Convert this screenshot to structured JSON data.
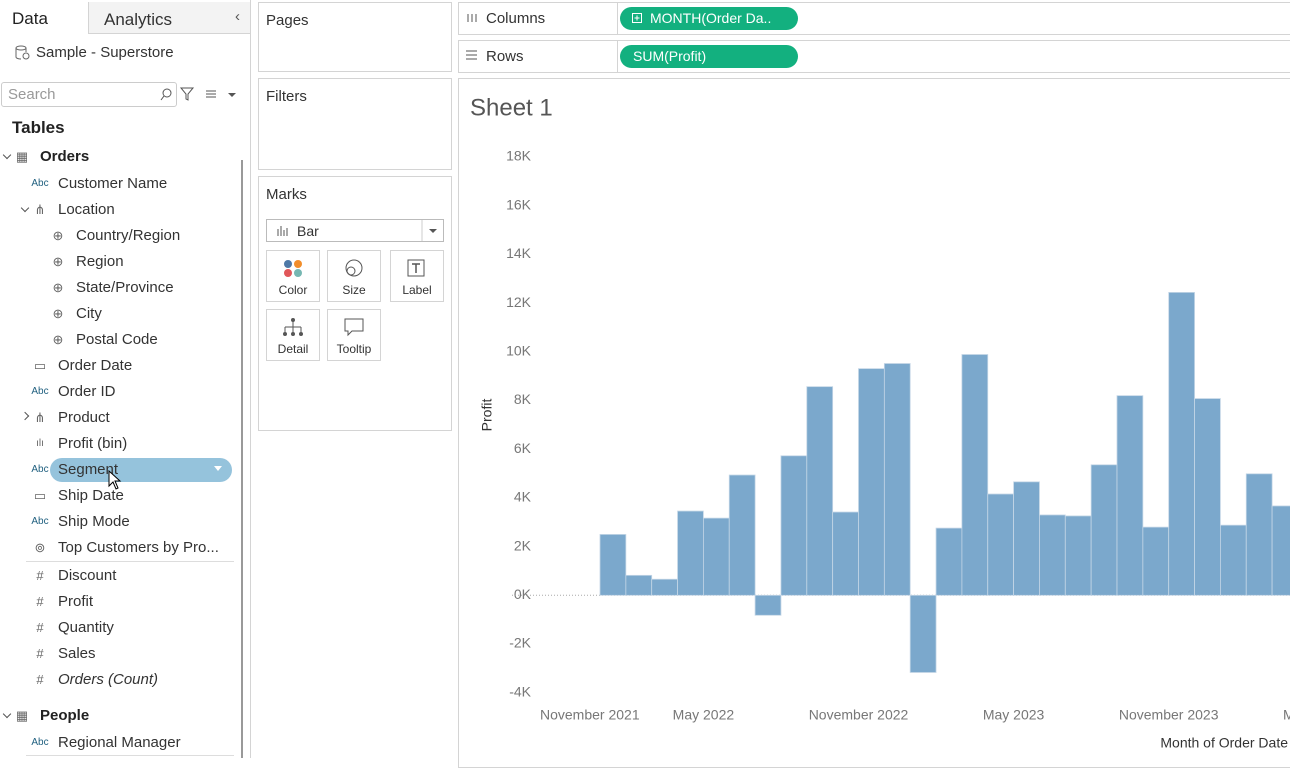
{
  "data_pane": {
    "tabs": [
      "Data",
      "Analytics"
    ],
    "datasource": "Sample - Superstore",
    "search_placeholder": "Search",
    "section": "Tables",
    "fields": [
      {
        "label": "Orders",
        "icon": "▦",
        "depth": 0,
        "expander": "open"
      },
      {
        "label": "Customer Name",
        "icon": "Abc",
        "depth": 1
      },
      {
        "label": "Location",
        "icon": "⋔",
        "depth": 1,
        "expander": "open"
      },
      {
        "label": "Country/Region",
        "icon": "⊕",
        "depth": 2
      },
      {
        "label": "Region",
        "icon": "⊕",
        "depth": 2
      },
      {
        "label": "State/Province",
        "icon": "⊕",
        "depth": 2
      },
      {
        "label": "City",
        "icon": "⊕",
        "depth": 2
      },
      {
        "label": "Postal Code",
        "icon": "⊕",
        "depth": 2
      },
      {
        "label": "Order Date",
        "icon": "▭",
        "depth": 1
      },
      {
        "label": "Order ID",
        "icon": "Abc",
        "depth": 1
      },
      {
        "label": "Product",
        "icon": "⋔",
        "depth": 1,
        "expander": "closed"
      },
      {
        "label": "Profit (bin)",
        "icon": "ılı",
        "depth": 1
      },
      {
        "label": "Segment",
        "icon": "Abc",
        "depth": 1,
        "selected": true
      },
      {
        "label": "Ship Date",
        "icon": "▭",
        "depth": 1
      },
      {
        "label": "Ship Mode",
        "icon": "Abc",
        "depth": 1
      },
      {
        "label": "Top Customers by Pro...",
        "icon": "⊚",
        "depth": 1
      },
      {
        "label": "Discount",
        "icon": "#",
        "depth": 1
      },
      {
        "label": "Profit",
        "icon": "#",
        "depth": 1
      },
      {
        "label": "Quantity",
        "icon": "#",
        "depth": 1
      },
      {
        "label": "Sales",
        "icon": "#",
        "depth": 1
      },
      {
        "label": "Orders (Count)",
        "icon": "#",
        "depth": 1,
        "italic": true
      },
      {
        "label": "People",
        "icon": "▦",
        "depth": 0,
        "expander": "open"
      },
      {
        "label": "Regional Manager",
        "icon": "Abc",
        "depth": 1
      }
    ]
  },
  "shelves": {
    "pages": "Pages",
    "filters": "Filters",
    "marks": {
      "title": "Marks",
      "mark_type": "Bar",
      "buttons": [
        "Color",
        "Size",
        "Label",
        "Detail",
        "Tooltip"
      ]
    },
    "columns": {
      "label": "Columns",
      "pill": "MONTH(Order Da.."
    },
    "rows": {
      "label": "Rows",
      "pill": "SUM(Profit)"
    }
  },
  "chart_data": {
    "type": "bar",
    "title": "Sheet 1",
    "y_label": "Profit",
    "x_label": "Month of Order Date",
    "color": "#7ba8cc",
    "x": [
      "2022-01",
      "2022-02",
      "2022-03",
      "2022-04",
      "2022-05",
      "2022-06",
      "2022-07",
      "2022-08",
      "2022-09",
      "2022-10",
      "2022-11",
      "2022-12",
      "2023-01",
      "2023-02",
      "2023-03",
      "2023-04",
      "2023-05",
      "2023-06",
      "2023-07",
      "2023-08",
      "2023-09",
      "2023-10",
      "2023-11",
      "2023-12",
      "2024-01",
      "2024-02",
      "2024-03"
    ],
    "values": [
      2500,
      820,
      660,
      3460,
      3170,
      4940,
      -820,
      5730,
      8570,
      3420,
      9310,
      9520,
      -3170,
      2760,
      9890,
      4160,
      4660,
      3300,
      3260,
      5360,
      8200,
      2800,
      12440,
      8080,
      2880,
      4990,
      3670
    ],
    "ylim": [
      -4300,
      18700
    ],
    "yticks": [
      {
        "value": -4000,
        "label": "-4K"
      },
      {
        "value": -2000,
        "label": "-2K"
      },
      {
        "value": 0,
        "label": "0K"
      },
      {
        "value": 2000,
        "label": "2K"
      },
      {
        "value": 4000,
        "label": "4K"
      },
      {
        "value": 6000,
        "label": "6K"
      },
      {
        "value": 8000,
        "label": "8K"
      },
      {
        "value": 10000,
        "label": "10K"
      },
      {
        "value": 12000,
        "label": "12K"
      },
      {
        "value": 14000,
        "label": "14K"
      },
      {
        "value": 16000,
        "label": "16K"
      },
      {
        "value": 18000,
        "label": "18K"
      }
    ],
    "xticks": [
      {
        "value": "2021-11",
        "label": "November 2021"
      },
      {
        "value": "2022-05",
        "label": "May 2022"
      },
      {
        "value": "2022-11",
        "label": "November 2022"
      },
      {
        "value": "2023-05",
        "label": "May 2023"
      },
      {
        "value": "2023-11",
        "label": "November 2023"
      },
      {
        "value": "2024-05",
        "label": "M"
      }
    ]
  }
}
